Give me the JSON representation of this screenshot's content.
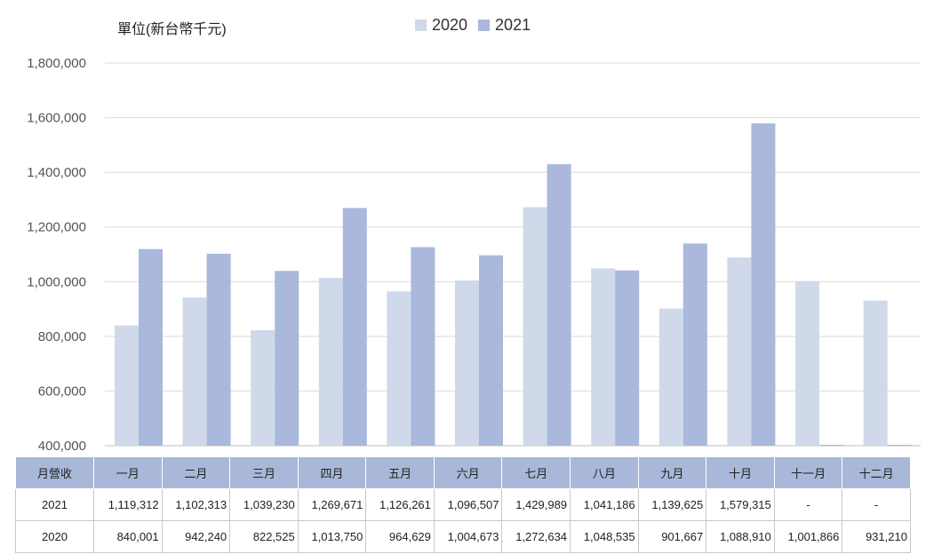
{
  "chart_data": {
    "type": "bar",
    "unit_label": "單位(新台幣千元)",
    "categories": [
      "一月",
      "二月",
      "三月",
      "四月",
      "五月",
      "六月",
      "七月",
      "八月",
      "九月",
      "十月",
      "十一月",
      "十二月"
    ],
    "series": [
      {
        "name": "2020",
        "color": "#cfd9ea",
        "values": [
          840001,
          942240,
          822525,
          1013750,
          964629,
          1004673,
          1272634,
          1048535,
          901667,
          1088910,
          1001866,
          931210
        ]
      },
      {
        "name": "2021",
        "color": "#a9b8db",
        "values": [
          1119312,
          1102313,
          1039230,
          1269671,
          1126261,
          1096507,
          1429989,
          1041186,
          1139625,
          1579315,
          null,
          null
        ]
      }
    ],
    "ylim": [
      400000,
      1800000
    ],
    "yticks": [
      "400,000",
      "600,000",
      "800,000",
      "1,000,000",
      "1,200,000",
      "1,400,000",
      "1,600,000",
      "1,800,000"
    ],
    "grid": true,
    "legend_position": "top"
  },
  "table": {
    "header_label": "月營收",
    "months": [
      "一月",
      "二月",
      "三月",
      "四月",
      "五月",
      "六月",
      "七月",
      "八月",
      "九月",
      "十月",
      "十一月",
      "十二月"
    ],
    "rows": [
      {
        "label": "2021",
        "cells": [
          "1,119,312",
          "1,102,313",
          "1,039,230",
          "1,269,671",
          "1,126,261",
          "1,096,507",
          "1,429,989",
          "1,041,186",
          "1,139,625",
          "1,579,315",
          "-",
          "-"
        ]
      },
      {
        "label": "2020",
        "cells": [
          "840,001",
          "942,240",
          "822,525",
          "1,013,750",
          "964,629",
          "1,004,673",
          "1,272,634",
          "1,048,535",
          "901,667",
          "1,088,910",
          "1,001,866",
          "931,210"
        ]
      }
    ]
  }
}
